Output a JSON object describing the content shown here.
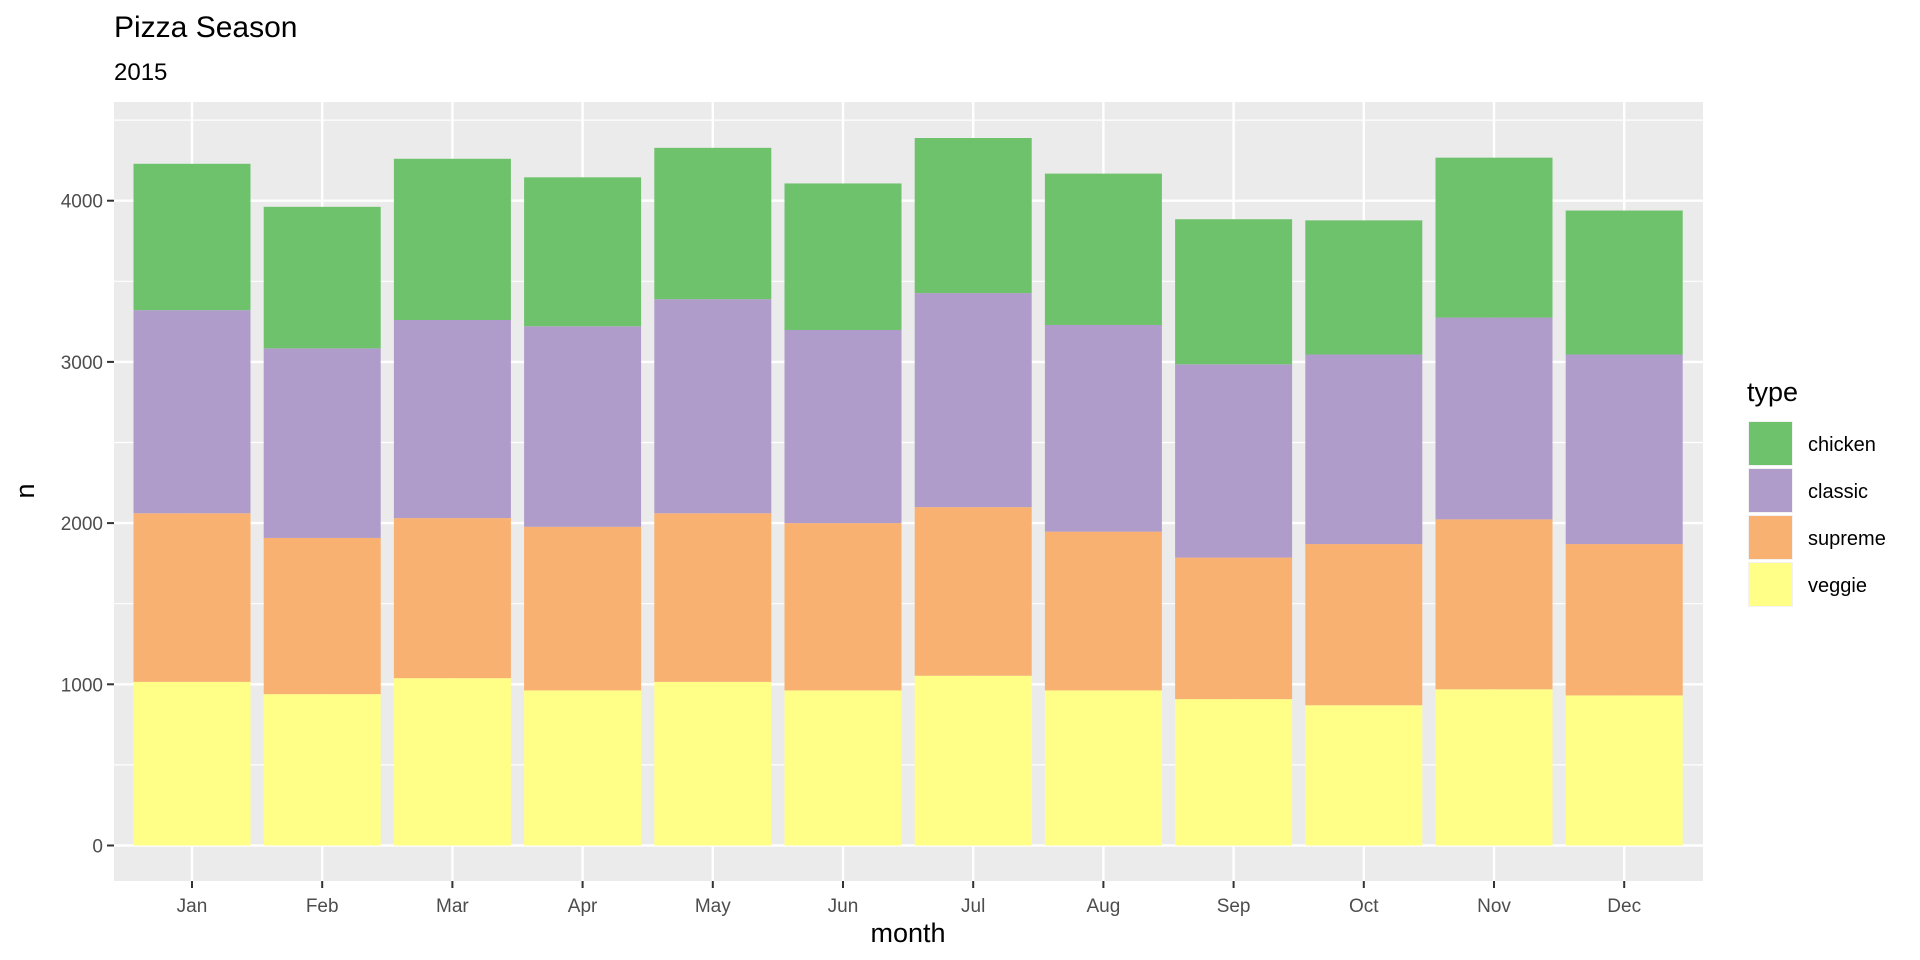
{
  "chart_data": {
    "type": "bar",
    "stacked": true,
    "title": "Pizza Season",
    "subtitle": "2015",
    "xlabel": "month",
    "ylabel": "n",
    "ylim": [
      0,
      4600
    ],
    "yticks": [
      0,
      1000,
      2000,
      3000,
      4000
    ],
    "ytick_labels": [
      "0",
      "1000",
      "2000",
      "3000",
      "4000"
    ],
    "grid": true,
    "legend": {
      "title": "type",
      "position": "right"
    },
    "categories": [
      "Jan",
      "Feb",
      "Mar",
      "Apr",
      "May",
      "Jun",
      "Jul",
      "Aug",
      "Sep",
      "Oct",
      "Nov",
      "Dec"
    ],
    "series": [
      {
        "name": "veggie",
        "color": "#FFFF88",
        "values": [
          1015,
          939,
          1038,
          962,
          1015,
          962,
          1053,
          962,
          908,
          870,
          969,
          931
        ]
      },
      {
        "name": "supreme",
        "color": "#F9B172",
        "values": [
          1046,
          969,
          993,
          1015,
          1046,
          1038,
          1046,
          985,
          878,
          1000,
          1054,
          939
        ]
      },
      {
        "name": "classic",
        "color": "#AF9CCA",
        "values": [
          1260,
          1176,
          1229,
          1244,
          1328,
          1198,
          1328,
          1282,
          1199,
          1176,
          1252,
          1176
        ]
      },
      {
        "name": "chicken",
        "color": "#6EC26C",
        "values": [
          908,
          878,
          1000,
          924,
          939,
          909,
          962,
          939,
          900,
          832,
          992,
          893
        ]
      }
    ],
    "legend_order": [
      "chicken",
      "classic",
      "supreme",
      "veggie"
    ]
  }
}
